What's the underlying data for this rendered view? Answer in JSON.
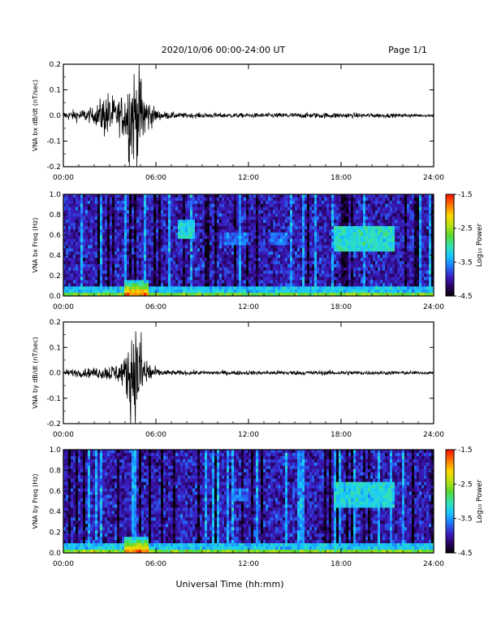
{
  "header": {
    "title": "2020/10/06  00:00-24:00 UT",
    "page": "Page 1/1"
  },
  "xlabel": "Universal Time (hh:mm)",
  "xticks": [
    "00:00",
    "06:00",
    "12:00",
    "18:00",
    "24:00"
  ],
  "colorbar": {
    "label": "Log₁₀ Power",
    "ticks": [
      "-1.5",
      "-2.5",
      "-3.5",
      "-4.5"
    ],
    "range": [
      -4.5,
      -1.5
    ],
    "colormap": [
      "#000000",
      "#2a0060",
      "#3a1fc4",
      "#1e78ff",
      "#18c8ff",
      "#35e3b0",
      "#55d830",
      "#b8e012",
      "#ffd700",
      "#ff7a00",
      "#ff1500"
    ]
  },
  "chart_data": [
    {
      "type": "line",
      "ylabel": "VNA bx dB/dt (nT/sec)",
      "yticks": [
        "0.2",
        "0.1",
        "0.0",
        "-0.1",
        "-0.2"
      ],
      "ylim": [
        -0.2,
        0.2
      ],
      "xlim_hours": [
        0,
        24
      ],
      "series": [
        {
          "x_hours": [
            0,
            1,
            2,
            2.8,
            3.5,
            4.0,
            4.3,
            4.6,
            4.8,
            5.0,
            5.2,
            5.5,
            5.8,
            6.2,
            7,
            8,
            10,
            12,
            14,
            16,
            18,
            20,
            22,
            24
          ],
          "amplitude": [
            0.015,
            0.025,
            0.03,
            0.1,
            0.06,
            0.1,
            0.2,
            0.2,
            0.2,
            0.19,
            0.13,
            0.07,
            0.04,
            0.018,
            0.013,
            0.01,
            0.01,
            0.009,
            0.01,
            0.011,
            0.011,
            0.009,
            0.007,
            0.006
          ]
        }
      ]
    },
    {
      "type": "heatmap",
      "ylabel": "VNA bx Freq (Hz)",
      "yticks": [
        "1.0",
        "0.8",
        "0.6",
        "0.4",
        "0.2",
        "0.0"
      ],
      "ylim": [
        0.0,
        1.0
      ],
      "xlim_hours": [
        0,
        24
      ],
      "value_range": [
        -4.5,
        -1.5
      ],
      "features": [
        {
          "x_hours": [
            7.5,
            8.5
          ],
          "freq_hz": [
            0.55,
            0.75
          ],
          "log_power": -3.2
        },
        {
          "x_hours": [
            10.5,
            12.0
          ],
          "freq_hz": [
            0.5,
            0.62
          ],
          "log_power": -3.6
        },
        {
          "x_hours": [
            13.5,
            14.5
          ],
          "freq_hz": [
            0.5,
            0.62
          ],
          "log_power": -3.6
        },
        {
          "x_hours": [
            17.5,
            21.5
          ],
          "freq_hz": [
            0.45,
            0.7
          ],
          "log_power": -3.1
        }
      ],
      "bands": [
        {
          "x_hours": [
            4.0,
            5.5
          ],
          "freq_hz": [
            0.0,
            0.15
          ],
          "log_power": -1.6
        }
      ]
    },
    {
      "type": "line",
      "ylabel": "VNA by dB/dt (nT/sec)",
      "yticks": [
        "0.2",
        "0.1",
        "0.0",
        "-0.1",
        "-0.2"
      ],
      "ylim": [
        -0.2,
        0.2
      ],
      "xlim_hours": [
        0,
        24
      ],
      "series": [
        {
          "x_hours": [
            0,
            1,
            2,
            2.8,
            3.5,
            4.0,
            4.3,
            4.6,
            4.8,
            5.0,
            5.2,
            5.5,
            5.8,
            6.2,
            7,
            8,
            10,
            12,
            14,
            16,
            18,
            20,
            22,
            24
          ],
          "amplitude": [
            0.012,
            0.016,
            0.02,
            0.03,
            0.04,
            0.06,
            0.18,
            0.2,
            0.2,
            0.18,
            0.1,
            0.06,
            0.03,
            0.014,
            0.01,
            0.009,
            0.009,
            0.008,
            0.009,
            0.009,
            0.009,
            0.008,
            0.007,
            0.006
          ]
        }
      ]
    },
    {
      "type": "heatmap",
      "ylabel": "VNA by Freq (Hz)",
      "yticks": [
        "1.0",
        "0.8",
        "0.6",
        "0.4",
        "0.2",
        "0.0"
      ],
      "ylim": [
        0.0,
        1.0
      ],
      "xlim_hours": [
        0,
        24
      ],
      "value_range": [
        -4.5,
        -1.5
      ],
      "features": [
        {
          "x_hours": [
            11.0,
            12.0
          ],
          "freq_hz": [
            0.5,
            0.62
          ],
          "log_power": -3.6
        },
        {
          "x_hours": [
            17.5,
            21.5
          ],
          "freq_hz": [
            0.45,
            0.7
          ],
          "log_power": -3.2
        }
      ],
      "bands": [
        {
          "x_hours": [
            4.0,
            5.5
          ],
          "freq_hz": [
            0.0,
            0.15
          ],
          "log_power": -1.6
        }
      ]
    }
  ]
}
